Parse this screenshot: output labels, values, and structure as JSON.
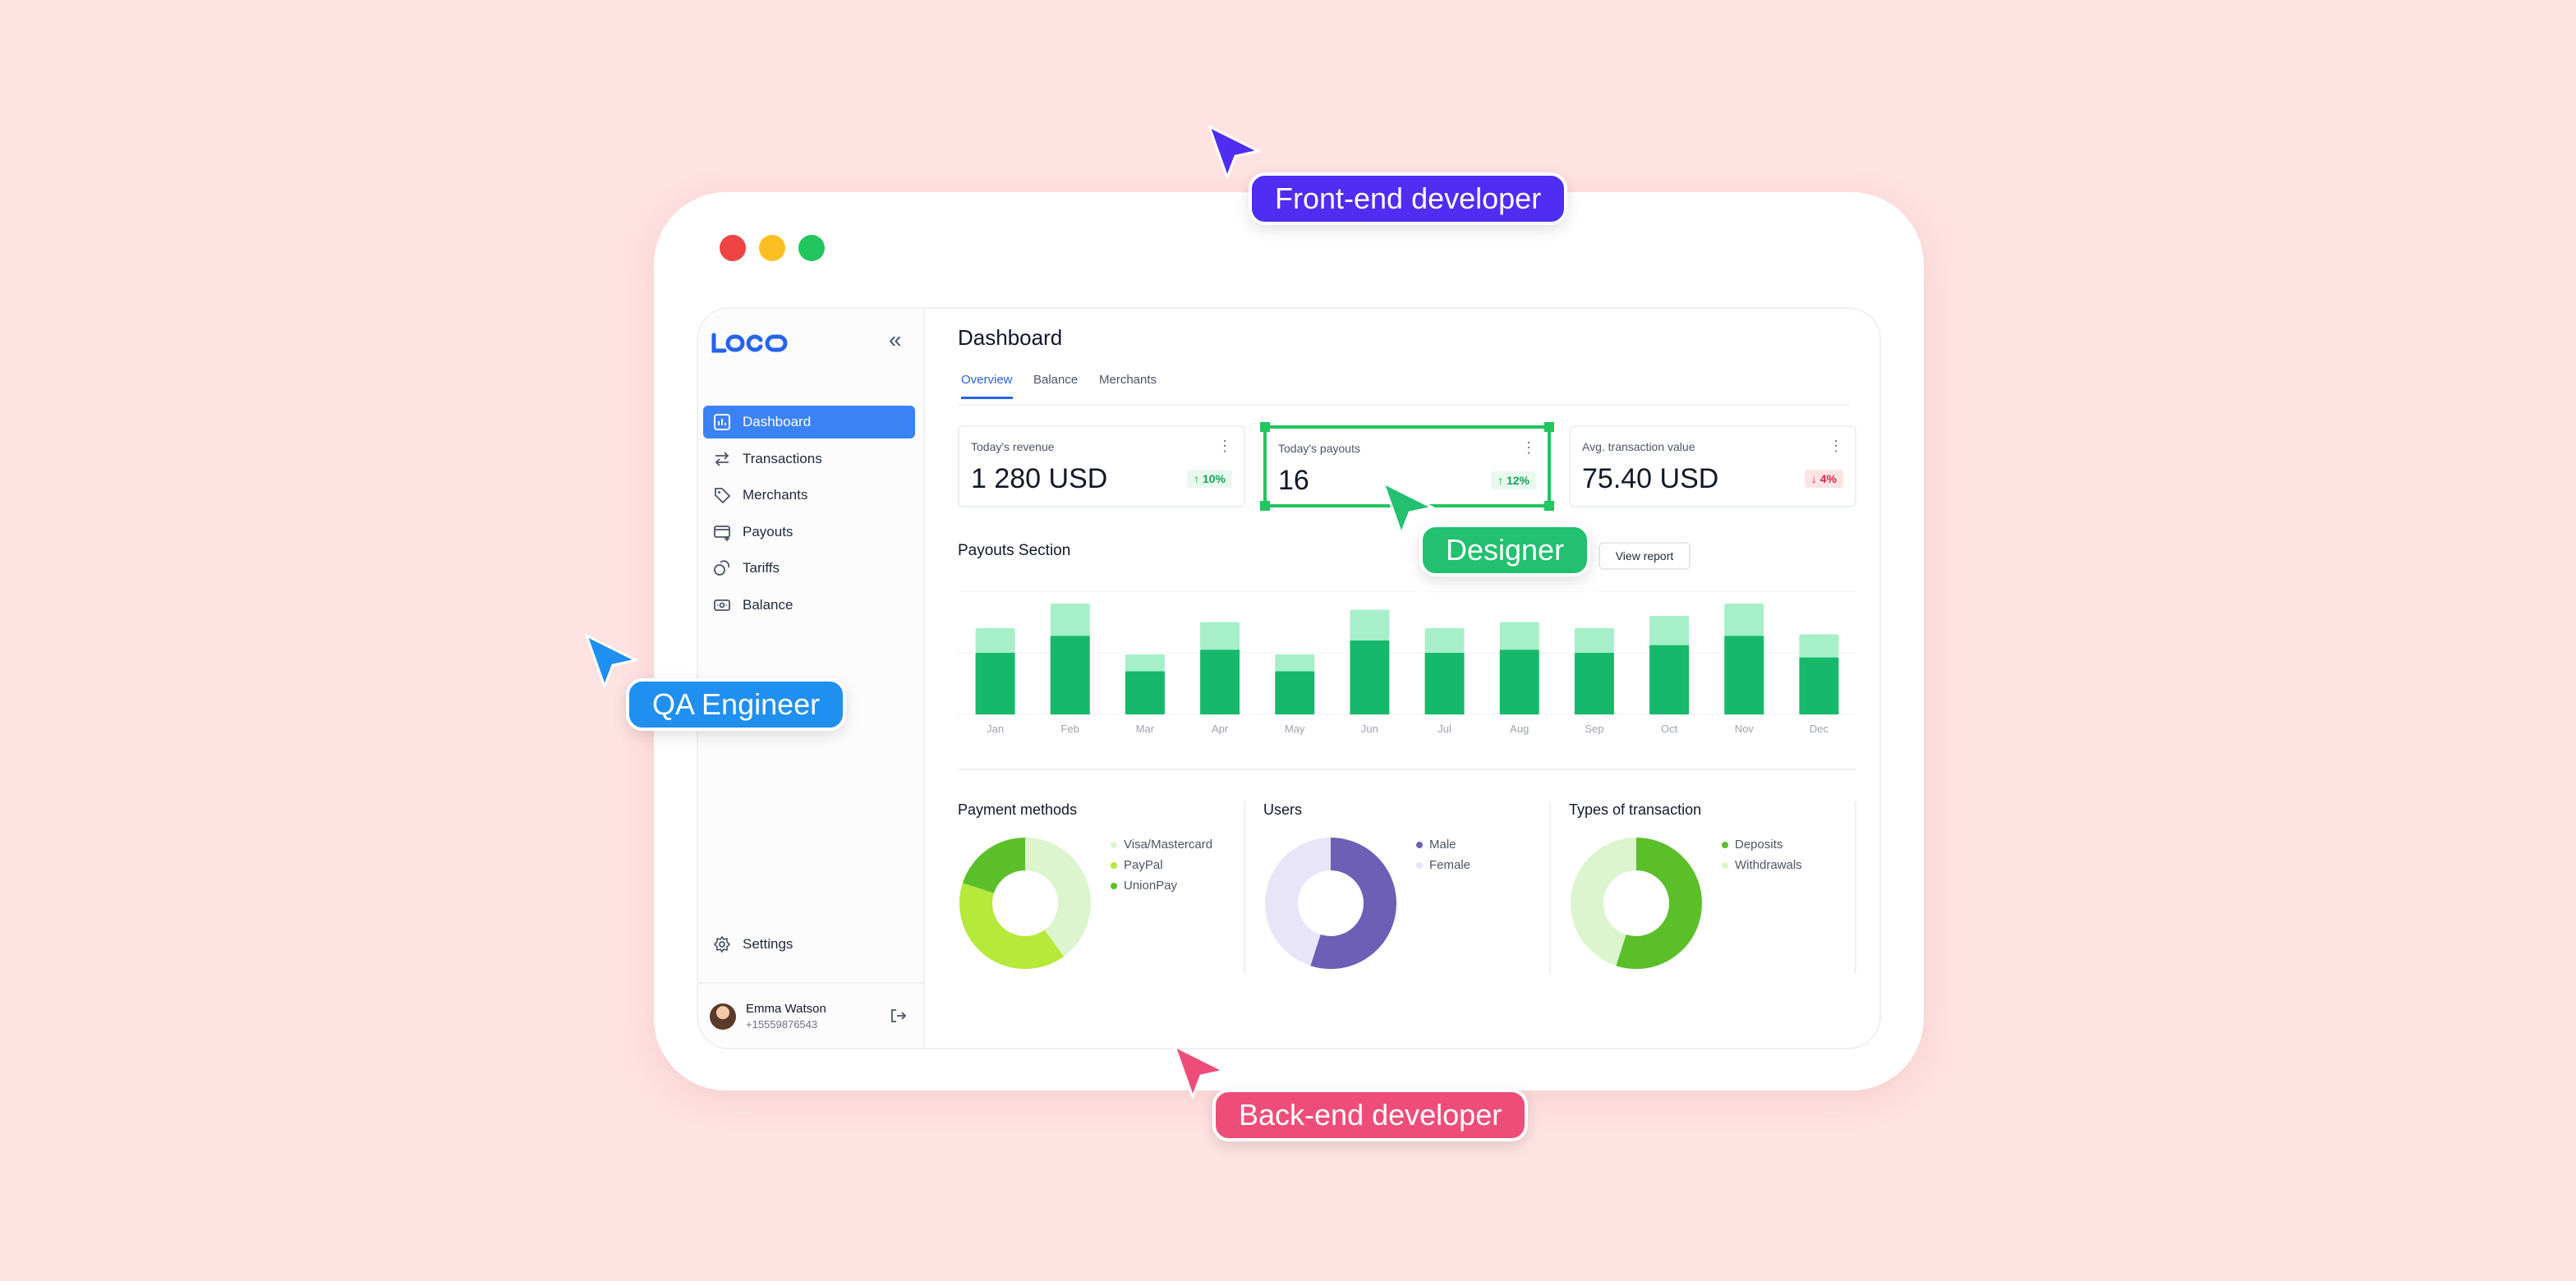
{
  "sidebar": {
    "logo": "LOGO",
    "items": [
      {
        "label": "Dashboard",
        "icon": "bar-chart-icon"
      },
      {
        "label": "Transactions",
        "icon": "arrows-swap-icon"
      },
      {
        "label": "Merchants",
        "icon": "tag-icon"
      },
      {
        "label": "Payouts",
        "icon": "card-icon"
      },
      {
        "label": "Tariffs",
        "icon": "coins-icon"
      },
      {
        "label": "Balance",
        "icon": "cash-icon"
      }
    ],
    "settings_label": "Settings",
    "user": {
      "name": "Emma Watson",
      "phone": "+15559876543"
    }
  },
  "main": {
    "title": "Dashboard",
    "tabs": [
      {
        "label": "Overview"
      },
      {
        "label": "Balance"
      },
      {
        "label": "Merchants"
      }
    ],
    "cards": [
      {
        "label": "Today's revenue",
        "value": "1 280 USD",
        "change": "↑ 10%"
      },
      {
        "label": "Today's payouts",
        "value": "16",
        "change": "↑ 12%"
      },
      {
        "label": "Avg. transaction value",
        "value": "75.40 USD",
        "change": "↓ 4%"
      }
    ],
    "payouts_title": "Payouts Section",
    "view_report": "View report",
    "panels": [
      {
        "title": "Payment methods",
        "legend": [
          "Visa/Mastercard",
          "PayPal",
          "UnionPay"
        ]
      },
      {
        "title": "Users",
        "legend": [
          "Male",
          "Female"
        ]
      },
      {
        "title": "Types of transaction",
        "legend": [
          "Deposits",
          "Withdrawals"
        ]
      }
    ]
  },
  "chart_data": [
    {
      "type": "bar",
      "categories": [
        "Jan",
        "Feb",
        "Mar",
        "Apr",
        "May",
        "Jun",
        "Jul",
        "Aug",
        "Sep",
        "Oct",
        "Nov",
        "Dec"
      ],
      "series": [
        {
          "values": [
            40,
            51,
            28,
            42,
            28,
            48,
            40,
            42,
            40,
            45,
            51,
            37
          ]
        },
        {
          "values": [
            56,
            72,
            39,
            60,
            39,
            68,
            56,
            60,
            56,
            64,
            72,
            52
          ]
        }
      ],
      "colors": [
        "#16b96b",
        "#a7efc8"
      ]
    },
    {
      "type": "pie",
      "labels": [
        "Visa/Mastercard",
        "PayPal",
        "UnionPay"
      ],
      "values": [
        40,
        40,
        20
      ],
      "colors": [
        "#dcf5cf",
        "#b5e93a",
        "#5bbf2a"
      ]
    },
    {
      "type": "pie",
      "labels": [
        "Male",
        "Female"
      ],
      "values": [
        55,
        45
      ],
      "colors": [
        "#6e5fb6",
        "#e8e5f9"
      ]
    },
    {
      "type": "pie",
      "labels": [
        "Deposits",
        "Withdrawals"
      ],
      "values": [
        55,
        45
      ],
      "colors": [
        "#5bbf2a",
        "#dcf5cf"
      ]
    }
  ],
  "tags": {
    "frontend": "Front-end developer",
    "designer": "Designer",
    "qa": "QA Engineer",
    "backend": "Back-end developer"
  },
  "colors": {
    "frontend": "#4f2df2",
    "designer": "#22c06f",
    "qa": "#1f8ff0",
    "backend": "#ef4d79",
    "accent": "#3b82f6"
  }
}
